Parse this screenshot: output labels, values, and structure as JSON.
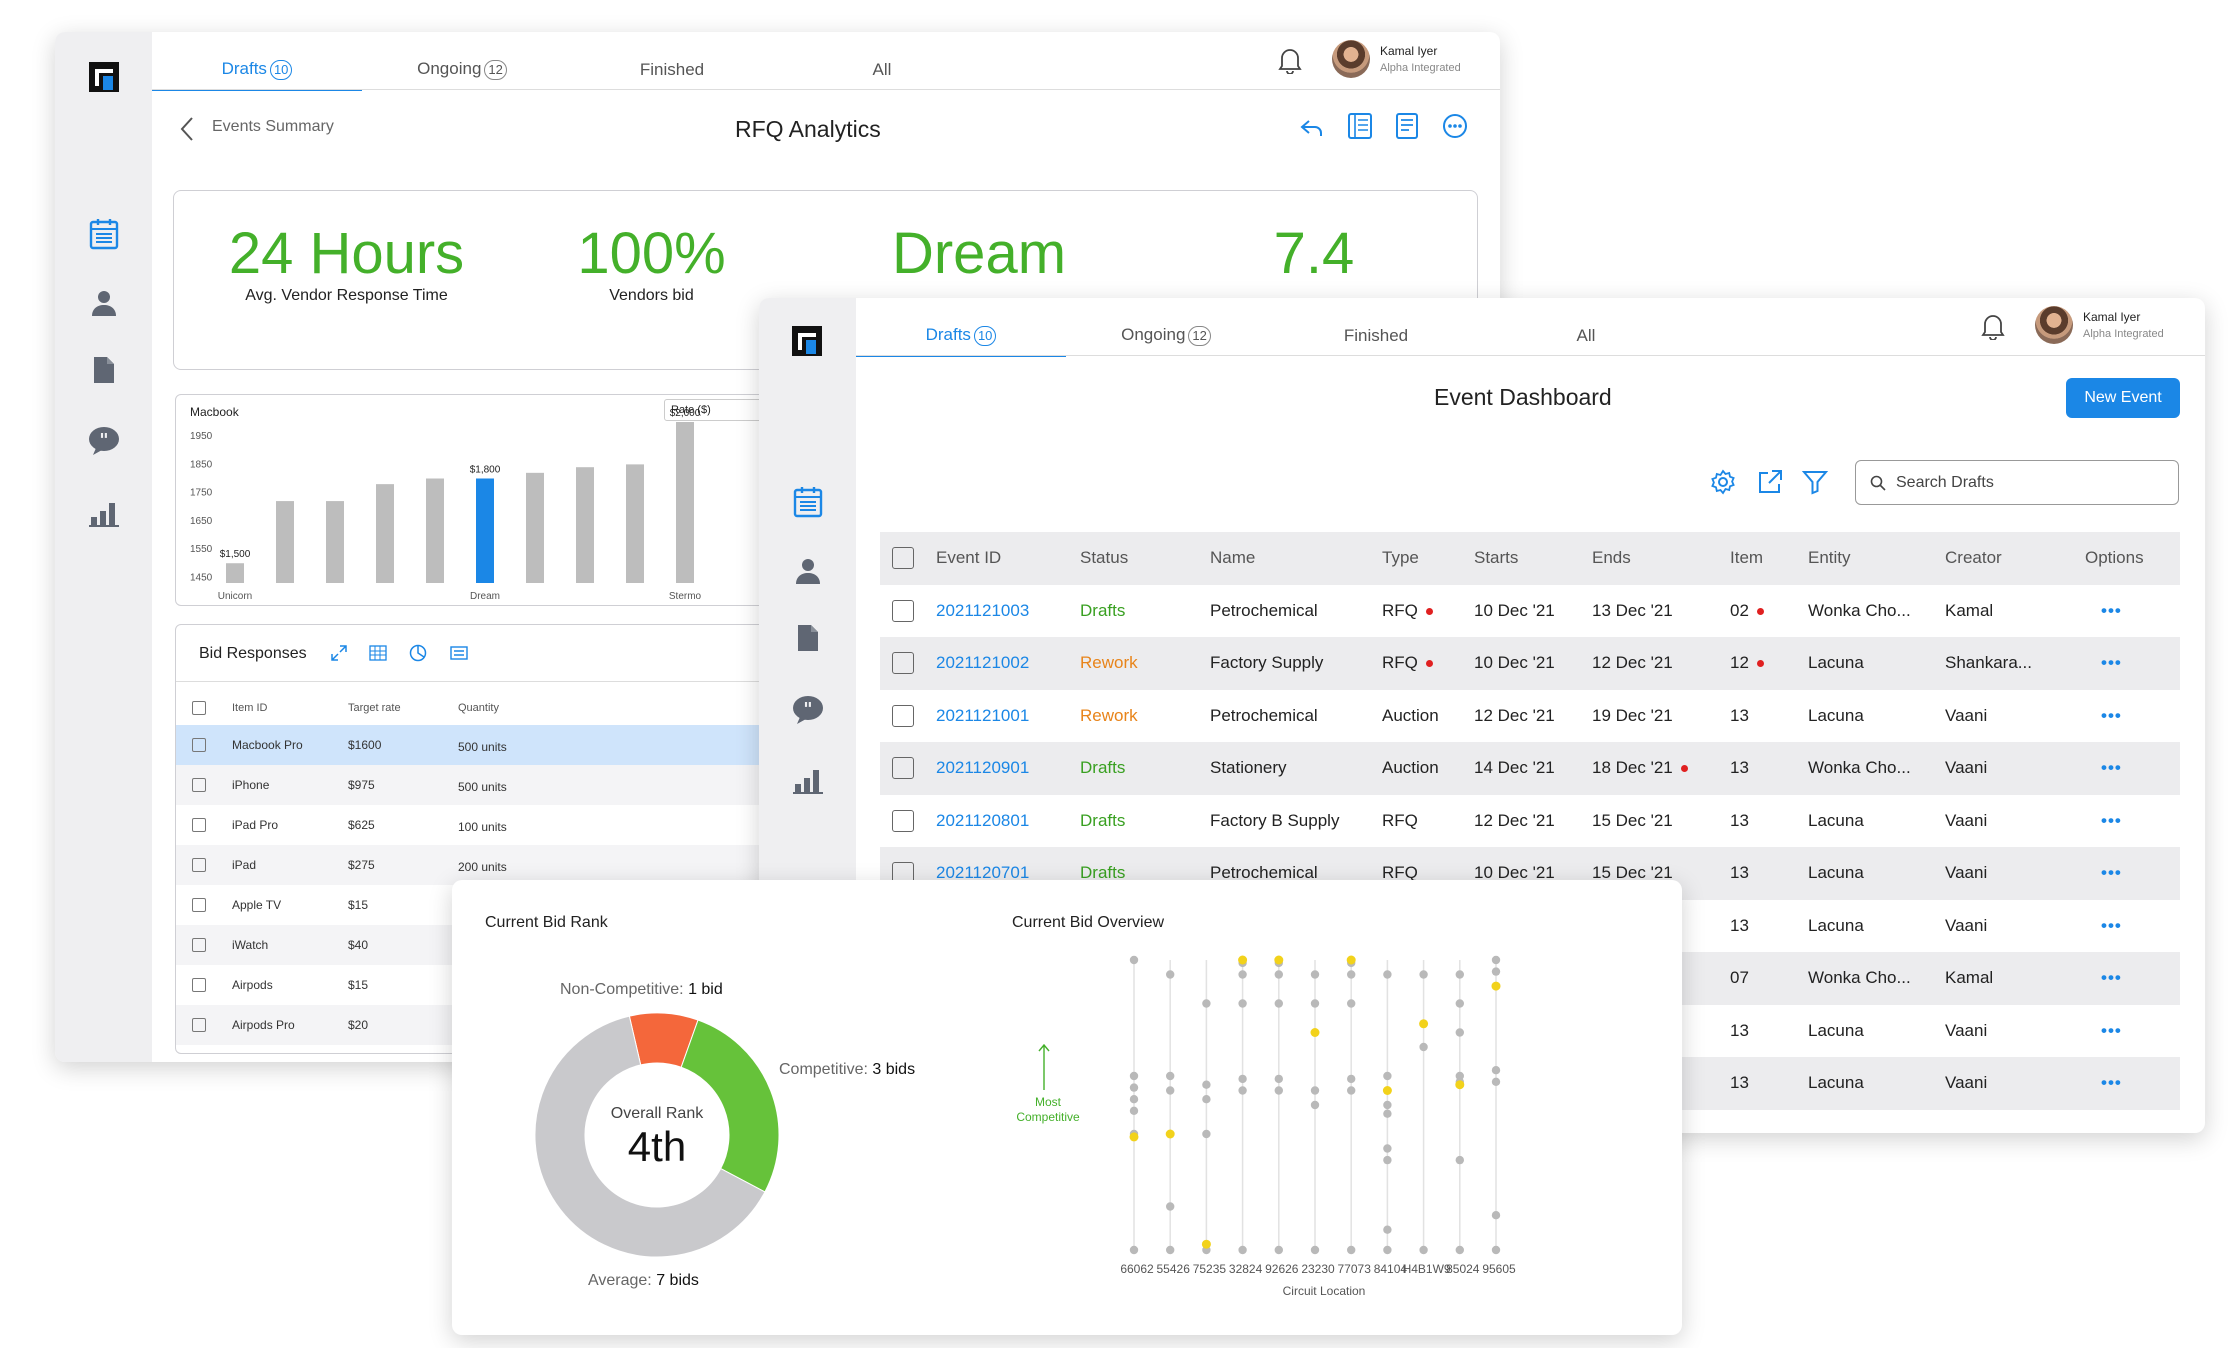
{
  "colors": {
    "accent": "#1b87e6",
    "green": "#44b02a",
    "orange": "#e8841a",
    "red": "#e02020",
    "donut_red": "#f4673b",
    "donut_green": "#66c23a",
    "donut_grey": "#c9c9cc",
    "dot_yellow": "#f2d21b"
  },
  "user": {
    "name": "Kamal Iyer",
    "org": "Alpha Integrated"
  },
  "tabs": [
    {
      "label": "Drafts",
      "count": "10",
      "active": true
    },
    {
      "label": "Ongoing",
      "count": "12",
      "active": false
    },
    {
      "label": "Finished",
      "count": "",
      "active": false
    },
    {
      "label": "All",
      "count": "",
      "active": false
    }
  ],
  "analytics": {
    "back_label": "Events Summary",
    "title": "RFQ Analytics",
    "kpis": [
      {
        "value": "24 Hours",
        "label": "Avg. Vendor Response Time"
      },
      {
        "value": "100%",
        "label": "Vendors bid"
      },
      {
        "value": "Dream",
        "label": ""
      },
      {
        "value": "7.4",
        "label": ""
      }
    ],
    "chart_panel": {
      "product": "Macbook",
      "dropdown": "Rate ($)"
    },
    "bid_responses": {
      "title": "Bid Responses",
      "headers": [
        "Item ID",
        "Target rate",
        "Quantity"
      ],
      "rows": [
        {
          "item": "Macbook Pro",
          "rate": "$1600",
          "qty": "500 units",
          "selected": true
        },
        {
          "item": "iPhone",
          "rate": "$975",
          "qty": "500 units"
        },
        {
          "item": "iPad Pro",
          "rate": "$625",
          "qty": "100 units"
        },
        {
          "item": "iPad",
          "rate": "$275",
          "qty": "200 units"
        },
        {
          "item": "Apple TV",
          "rate": "$15",
          "qty": ""
        },
        {
          "item": "iWatch",
          "rate": "$40",
          "qty": ""
        },
        {
          "item": "Airpods",
          "rate": "$15",
          "qty": ""
        },
        {
          "item": "Airpods Pro",
          "rate": "$20",
          "qty": ""
        }
      ]
    }
  },
  "dashboard": {
    "title": "Event Dashboard",
    "new_event": "New Event",
    "search_placeholder": "Search Drafts",
    "headers": [
      "Event ID",
      "Status",
      "Name",
      "Type",
      "Starts",
      "Ends",
      "Item",
      "Entity",
      "Creator",
      "Options"
    ],
    "rows": [
      {
        "id": "2021121003",
        "status": "Drafts",
        "name": "Petrochemical",
        "type": "RFQ",
        "type_dot": true,
        "starts": "10 Dec '21",
        "ends": "13 Dec '21",
        "ends_dot": false,
        "item": "02",
        "item_dot": true,
        "entity": "Wonka Cho...",
        "creator": "Kamal"
      },
      {
        "id": "2021121002",
        "status": "Rework",
        "name": "Factory Supply",
        "type": "RFQ",
        "type_dot": true,
        "starts": "10 Dec '21",
        "ends": "12 Dec '21",
        "ends_dot": false,
        "item": "12",
        "item_dot": true,
        "entity": "Lacuna",
        "creator": "Shankara..."
      },
      {
        "id": "2021121001",
        "status": "Rework",
        "name": "Petrochemical",
        "type": "Auction",
        "type_dot": false,
        "starts": "12 Dec '21",
        "ends": "19 Dec '21",
        "ends_dot": false,
        "item": "13",
        "item_dot": false,
        "entity": "Lacuna",
        "creator": "Vaani"
      },
      {
        "id": "2021120901",
        "status": "Drafts",
        "name": "Stationery",
        "type": "Auction",
        "type_dot": false,
        "starts": "14 Dec '21",
        "ends": "18 Dec '21",
        "ends_dot": true,
        "item": "13",
        "item_dot": false,
        "entity": "Wonka Cho...",
        "creator": "Vaani"
      },
      {
        "id": "2021120801",
        "status": "Drafts",
        "name": "Factory B Supply",
        "type": "RFQ",
        "type_dot": false,
        "starts": "12 Dec '21",
        "ends": "15 Dec '21",
        "ends_dot": false,
        "item": "13",
        "item_dot": false,
        "entity": "Lacuna",
        "creator": "Vaani"
      },
      {
        "id": "2021120701",
        "status": "Drafts",
        "name": "Petrochemical",
        "type": "RFQ",
        "type_dot": false,
        "starts": "10 Dec '21",
        "ends": "15 Dec '21",
        "ends_dot": false,
        "item": "13",
        "item_dot": false,
        "entity": "Lacuna",
        "creator": "Vaani"
      },
      {
        "id": "",
        "status": "",
        "name": "",
        "type": "",
        "type_dot": false,
        "starts": "",
        "ends": "",
        "ends_dot": false,
        "item": "13",
        "item_dot": false,
        "entity": "Lacuna",
        "creator": "Vaani"
      },
      {
        "id": "",
        "status": "",
        "name": "",
        "type": "",
        "type_dot": false,
        "starts": "",
        "ends": "",
        "ends_dot": false,
        "item": "07",
        "item_dot": false,
        "entity": "Wonka Cho...",
        "creator": "Kamal"
      },
      {
        "id": "",
        "status": "",
        "name": "",
        "type": "",
        "type_dot": false,
        "starts": "",
        "ends": "",
        "ends_dot": false,
        "item": "13",
        "item_dot": false,
        "entity": "Lacuna",
        "creator": "Vaani"
      },
      {
        "id": "",
        "status": "",
        "name": "",
        "type": "",
        "type_dot": false,
        "starts": "",
        "ends": "",
        "ends_dot": false,
        "item": "13",
        "item_dot": false,
        "entity": "Lacuna",
        "creator": "Vaani"
      }
    ]
  },
  "bid_rank": {
    "title": "Current Bid Rank",
    "center_label": "Overall Rank",
    "center_value": "4th",
    "non_competitive": {
      "label": "Non-Competitive:",
      "value": "1 bid"
    },
    "competitive": {
      "label": "Competitive:",
      "value": "3 bids"
    },
    "average": {
      "label": "Average:",
      "value": "7 bids"
    }
  },
  "bid_overview": {
    "title": "Current Bid Overview",
    "most_competitive": "Most Competitive",
    "xlabel": "Circuit Location"
  },
  "chart_data": [
    {
      "type": "bar",
      "title": "Macbook",
      "categories": [
        "Unicorn",
        "",
        "",
        "",
        "",
        "Dream",
        "",
        "",
        "",
        "Stermo"
      ],
      "values": [
        1500,
        1720,
        1720,
        1780,
        1800,
        1800,
        1820,
        1840,
        1850,
        2000
      ],
      "highlight_index": 5,
      "data_labels": {
        "0": "$1,500",
        "5": "$1,800",
        "9": "$2,000"
      },
      "yticks": [
        1450,
        1550,
        1650,
        1750,
        1850,
        1950
      ],
      "ylim": [
        1430,
        2000
      ]
    },
    {
      "type": "pie",
      "title": "Current Bid Rank",
      "slices": [
        {
          "name": "Non-Competitive",
          "value": 1
        },
        {
          "name": "Competitive",
          "value": 3
        },
        {
          "name": "Average",
          "value": 7
        }
      ]
    },
    {
      "type": "scatter",
      "title": "Current Bid Overview",
      "xlabel": "Circuit Location",
      "categories": [
        "66062",
        "55426",
        "75235",
        "32824",
        "92626",
        "23230",
        "77073",
        "84104",
        "H4B1W9",
        "85024",
        "95605"
      ],
      "series": [
        {
          "values": [
            [
              0.0,
              0.4,
              0.48,
              0.52,
              0.56,
              0.6,
              1.0
            ],
            [
              0.0,
              0.15,
              0.55,
              0.6,
              0.95
            ],
            [
              0.0,
              0.4,
              0.52,
              0.57,
              0.85
            ],
            [
              0.0,
              0.55,
              0.59,
              0.85,
              0.95,
              0.99
            ],
            [
              0.0,
              0.55,
              0.59,
              0.85,
              0.95,
              0.99
            ],
            [
              0.0,
              0.5,
              0.55,
              0.85,
              0.95
            ],
            [
              0.0,
              0.55,
              0.59,
              0.85,
              0.95,
              0.99
            ],
            [
              0.0,
              0.07,
              0.31,
              0.35,
              0.47,
              0.5,
              0.6,
              0.95
            ],
            [
              0.0,
              0.7,
              0.95
            ],
            [
              0.0,
              0.31,
              0.58,
              0.6,
              0.75,
              0.85,
              0.95
            ],
            [
              0.0,
              0.12,
              0.58,
              0.62,
              0.91,
              0.96,
              1.0
            ]
          ]
        },
        {
          "values": [
            [
              0.39
            ],
            [
              0.4
            ],
            [
              0.02
            ],
            [
              1.0
            ],
            [
              1.0
            ],
            [
              0.75
            ],
            [
              1.0
            ],
            [
              0.55
            ],
            [
              0.78
            ],
            [
              0.57
            ],
            [
              0.91
            ]
          ]
        }
      ]
    }
  ]
}
